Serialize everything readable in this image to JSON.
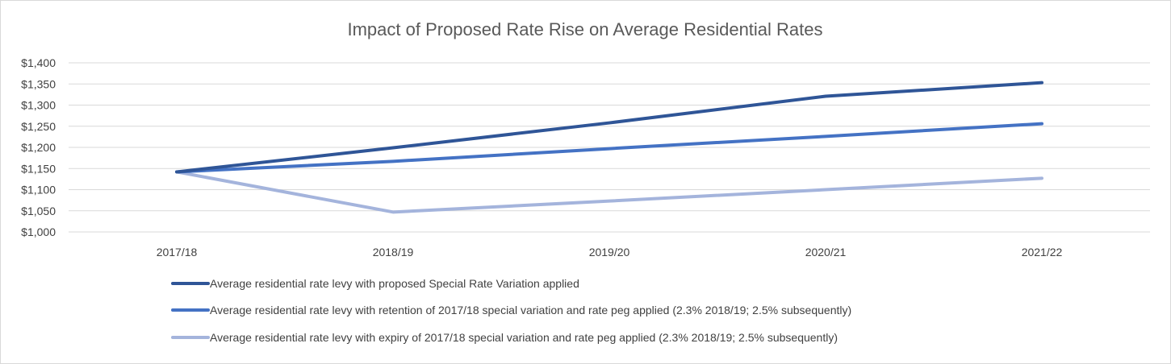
{
  "chart_data": {
    "type": "line",
    "title": "Impact of Proposed Rate Rise on Average Residential Rates",
    "xlabel": "",
    "ylabel": "",
    "categories": [
      "2017/18",
      "2018/19",
      "2019/20",
      "2020/21",
      "2021/22"
    ],
    "ylim": [
      1000,
      1400
    ],
    "yticks": [
      1000,
      1050,
      1100,
      1150,
      1200,
      1250,
      1300,
      1350,
      1400
    ],
    "ytick_labels": [
      "$1,000",
      "$1,050",
      "$1,100",
      "$1,150",
      "$1,200",
      "$1,250",
      "$1,300",
      "$1,350",
      "$1,400"
    ],
    "grid": true,
    "legend_position": "bottom",
    "series": [
      {
        "name": "Average residential rate levy with proposed Special Rate Variation applied",
        "values": [
          1142,
          1199,
          1258,
          1321,
          1353
        ],
        "color": "#2f5597"
      },
      {
        "name": "Average residential rate levy with retention of 2017/18 special variation and rate peg applied (2.3% 2018/19; 2.5% subsequently)",
        "values": [
          1142,
          1167,
          1197,
          1226,
          1256
        ],
        "color": "#4472c4"
      },
      {
        "name": "Average residential rate levy with expiry of 2017/18 special variation and rate peg applied (2.3% 2018/19; 2.5% subsequently)",
        "values": [
          1142,
          1047,
          1073,
          1100,
          1127
        ],
        "color": "#a4b4dc"
      }
    ]
  }
}
